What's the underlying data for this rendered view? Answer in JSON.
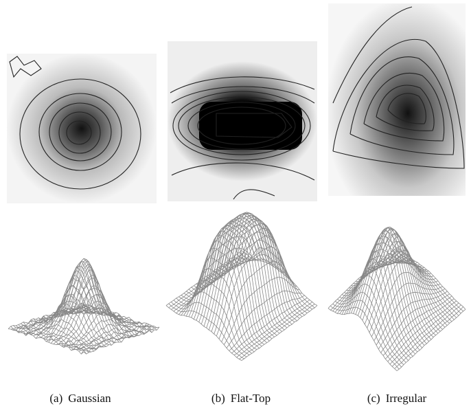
{
  "panels": [
    {
      "label": "(a)",
      "title": "Gaussian"
    },
    {
      "label": "(b)",
      "title": "Flat-Top"
    },
    {
      "label": "(c)",
      "title": "Irregular"
    }
  ]
}
